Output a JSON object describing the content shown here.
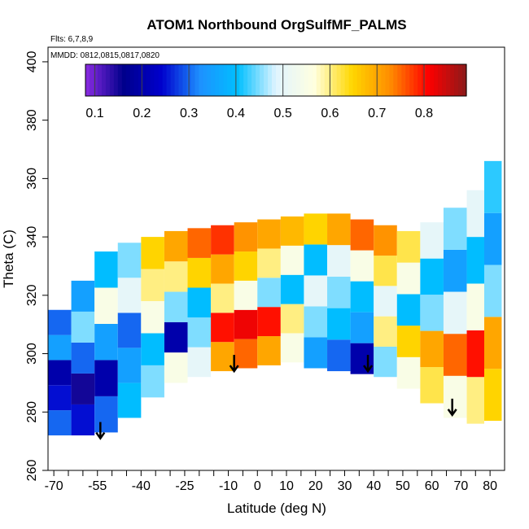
{
  "chart_data": {
    "type": "heatmap",
    "title": "ATOM1 Northbound OrgSulfMF_PALMS",
    "subtitle_flights": "Flts: 6,7,8,9",
    "subtitle_dates": "MMDD: 0812,0815,0817,0820",
    "xlabel": "Latitude (deg N)",
    "ylabel": "Theta (C)",
    "xlim": [
      -72,
      85
    ],
    "ylim": [
      260,
      405
    ],
    "x_ticks": [
      -70,
      -55,
      -40,
      -25,
      -10,
      0,
      10,
      20,
      30,
      40,
      50,
      60,
      70,
      80
    ],
    "x_tick_labels": [
      "-70",
      "-55",
      "-40",
      "-25",
      "-10",
      "0",
      "10",
      "20",
      "30",
      "40",
      "50",
      "60",
      "70",
      "80"
    ],
    "y_ticks": [
      260,
      280,
      300,
      320,
      340,
      360,
      380,
      400
    ],
    "y_tick_labels": [
      "260",
      "280",
      "300",
      "320",
      "340",
      "360",
      "380",
      "400"
    ],
    "colorbar": {
      "range": [
        0.08,
        0.89
      ],
      "ticks": [
        0.1,
        0.2,
        0.3,
        0.4,
        0.5,
        0.6,
        0.7,
        0.8
      ],
      "tick_labels": [
        "0.1",
        "0.2",
        "0.3",
        "0.4",
        "0.5",
        "0.6",
        "0.7",
        "0.8"
      ],
      "colors": [
        "#8a2be2",
        "#00008b",
        "#0000cd",
        "#1e90ff",
        "#00bfff",
        "#e0f4ff",
        "#ffffe0",
        "#ffd700",
        "#ff8c00",
        "#ff0000",
        "#8b1a1a"
      ]
    },
    "grid": false,
    "legend": "top-inside colorbar",
    "value_columns": [
      {
        "lat": -68,
        "bottom": 272,
        "top": 315,
        "values": [
          0.3,
          0.25,
          0.2,
          0.35,
          0.3
        ]
      },
      {
        "lat": -60,
        "bottom": 272,
        "top": 325,
        "values": [
          0.25,
          0.15,
          0.3,
          0.45,
          0.35
        ]
      },
      {
        "lat": -52,
        "bottom": 273,
        "top": 335,
        "values": [
          0.3,
          0.2,
          0.35,
          0.55,
          0.4
        ]
      },
      {
        "lat": -44,
        "bottom": 278,
        "top": 338,
        "values": [
          0.4,
          0.35,
          0.3,
          0.5,
          0.45
        ]
      },
      {
        "lat": -36,
        "bottom": 285,
        "top": 340,
        "values": [
          0.45,
          0.4,
          0.55,
          0.6,
          0.65
        ]
      },
      {
        "lat": -28,
        "bottom": 290,
        "top": 342,
        "values": [
          0.55,
          0.2,
          0.45,
          0.6,
          0.7
        ]
      },
      {
        "lat": -20,
        "bottom": 292,
        "top": 343,
        "values": [
          0.5,
          0.45,
          0.4,
          0.65,
          0.75
        ]
      },
      {
        "lat": -12,
        "bottom": 294,
        "top": 344,
        "values": [
          0.7,
          0.8,
          0.6,
          0.7,
          0.78
        ]
      },
      {
        "lat": -4,
        "bottom": 295,
        "top": 345,
        "values": [
          0.75,
          0.82,
          0.55,
          0.65,
          0.72
        ]
      },
      {
        "lat": 4,
        "bottom": 296,
        "top": 346,
        "values": [
          0.7,
          0.8,
          0.45,
          0.6,
          0.7
        ]
      },
      {
        "lat": 12,
        "bottom": 297,
        "top": 347,
        "values": [
          0.55,
          0.6,
          0.4,
          0.55,
          0.68
        ]
      },
      {
        "lat": 20,
        "bottom": 295,
        "top": 348,
        "values": [
          0.35,
          0.45,
          0.5,
          0.4,
          0.65
        ]
      },
      {
        "lat": 28,
        "bottom": 294,
        "top": 348,
        "values": [
          0.3,
          0.4,
          0.45,
          0.5,
          0.7
        ]
      },
      {
        "lat": 36,
        "bottom": 293,
        "top": 346,
        "values": [
          0.2,
          0.35,
          0.4,
          0.55,
          0.75
        ]
      },
      {
        "lat": 44,
        "bottom": 292,
        "top": 344,
        "values": [
          0.45,
          0.6,
          0.5,
          0.62,
          0.72
        ]
      },
      {
        "lat": 52,
        "bottom": 288,
        "top": 342,
        "values": [
          0.55,
          0.65,
          0.4,
          0.55,
          0.62
        ]
      },
      {
        "lat": 60,
        "bottom": 283,
        "top": 345,
        "values": [
          0.62,
          0.7,
          0.45,
          0.4,
          0.5
        ]
      },
      {
        "lat": 68,
        "bottom": 278,
        "top": 350,
        "values": [
          0.55,
          0.75,
          0.5,
          0.35,
          0.45
        ]
      },
      {
        "lat": 76,
        "bottom": 276,
        "top": 356,
        "values": [
          0.6,
          0.8,
          0.55,
          0.4,
          0.5
        ]
      },
      {
        "lat": 80,
        "bottom": 277,
        "top": 366,
        "values": [
          0.65,
          0.7,
          0.45,
          0.35,
          0.42
        ]
      }
    ],
    "arrows": [
      {
        "lat": -54,
        "theta": 271
      },
      {
        "lat": -8,
        "theta": 294
      },
      {
        "lat": 38,
        "theta": 294
      },
      {
        "lat": 67,
        "theta": 279
      }
    ]
  }
}
